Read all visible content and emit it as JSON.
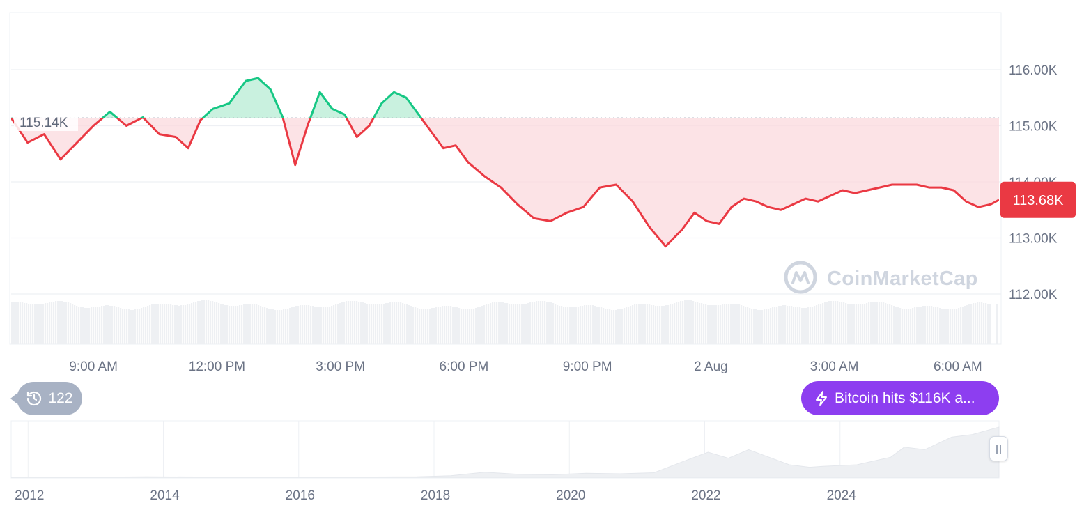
{
  "chart_data": {
    "type": "line",
    "title": "",
    "y_axis": {
      "ticks": [
        "116.00K",
        "115.00K",
        "114.00K",
        "113.00K",
        "112.00K"
      ],
      "tick_values": [
        116000,
        115000,
        114000,
        113000,
        112000
      ],
      "ylim": [
        111000,
        117000
      ],
      "position": "right"
    },
    "x_axis": {
      "ticks": [
        "9:00 AM",
        "12:00 PM",
        "3:00 PM",
        "6:00 PM",
        "9:00 PM",
        "2 Aug",
        "3:00 AM",
        "6:00 AM"
      ],
      "tick_hours": [
        9,
        12,
        15,
        18,
        21,
        24,
        27,
        30
      ],
      "range_hours": [
        7.0,
        31.0
      ],
      "unit": "hours from 1 Aug 00:00"
    },
    "reference_price": 115140,
    "reference_label": "115.14K",
    "current_price": 113680,
    "current_label": "113.68K",
    "colors": {
      "up": "#16c784",
      "down": "#ea3943",
      "up_fill": "#c9f1df",
      "down_fill": "#fbdadd",
      "grid": "#eef0f4",
      "volume": "#eef0f3"
    },
    "series": [
      {
        "x": [
          7.0,
          7.4,
          7.8,
          8.2,
          8.6,
          9.0,
          9.4,
          9.8,
          10.2,
          10.6,
          11.0,
          11.3,
          11.6,
          11.9,
          12.3,
          12.7,
          13.0,
          13.3,
          13.6,
          13.9,
          14.2,
          14.5,
          14.8,
          15.1,
          15.4,
          15.7,
          16.0,
          16.3,
          16.6,
          16.9,
          17.2,
          17.5,
          17.8,
          18.1,
          18.5,
          18.9,
          19.3,
          19.7,
          20.1,
          20.5,
          20.9,
          21.3,
          21.7,
          22.1,
          22.5,
          22.9,
          23.3,
          23.6,
          23.9,
          24.2,
          24.5,
          24.8,
          25.1,
          25.4,
          25.7,
          26.0,
          26.3,
          26.6,
          26.9,
          27.2,
          27.5,
          27.8,
          28.1,
          28.4,
          28.7,
          29.0,
          29.3,
          29.6,
          29.9,
          30.2,
          30.5,
          30.8,
          31.0
        ],
        "y": [
          115140,
          114700,
          114850,
          114400,
          114700,
          115000,
          115250,
          115000,
          115150,
          114850,
          114800,
          114600,
          115100,
          115300,
          115400,
          115800,
          115850,
          115650,
          115150,
          114300,
          115000,
          115600,
          115300,
          115200,
          114800,
          115000,
          115400,
          115600,
          115500,
          115200,
          114900,
          114600,
          114650,
          114350,
          114100,
          113900,
          113600,
          113350,
          113300,
          113450,
          113550,
          113900,
          113950,
          113650,
          113200,
          112850,
          113150,
          113450,
          113300,
          113250,
          113550,
          113700,
          113650,
          113550,
          113500,
          113600,
          113700,
          113650,
          113750,
          113850,
          113800,
          113850,
          113900,
          113950,
          113950,
          113950,
          113900,
          113900,
          113850,
          113650,
          113550,
          113600,
          113680
        ]
      }
    ],
    "navigator": {
      "ticks": [
        "2012",
        "2014",
        "2016",
        "2018",
        "2020",
        "2022",
        "2024"
      ],
      "years": [
        2011.0,
        2012,
        2013,
        2014,
        2015,
        2016,
        2017,
        2017.5,
        2018.0,
        2018.5,
        2019.0,
        2019.5,
        2020.0,
        2020.5,
        2021.0,
        2021.3,
        2021.6,
        2021.9,
        2022.2,
        2022.5,
        2022.8,
        2023.0,
        2023.5,
        2024.0,
        2024.2,
        2024.5,
        2024.9,
        2025.2,
        2025.6
      ],
      "values": [
        0,
        0,
        0.01,
        0.005,
        0.003,
        0.006,
        0.01,
        0.03,
        0.1,
        0.06,
        0.05,
        0.08,
        0.07,
        0.09,
        0.35,
        0.5,
        0.38,
        0.55,
        0.4,
        0.25,
        0.2,
        0.22,
        0.25,
        0.4,
        0.6,
        0.55,
        0.8,
        0.85,
        1.0
      ]
    }
  },
  "watermark": {
    "text": "CoinMarketCap"
  },
  "history_badge": {
    "count": "122",
    "icon": "history-icon"
  },
  "news_pill": {
    "text": "Bitcoin hits $116K a...",
    "icon": "lightning-icon"
  }
}
